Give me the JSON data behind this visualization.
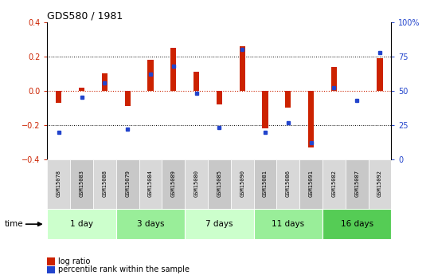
{
  "title": "GDS580 / 1981",
  "samples": [
    "GSM15078",
    "GSM15083",
    "GSM15088",
    "GSM15079",
    "GSM15084",
    "GSM15089",
    "GSM15080",
    "GSM15085",
    "GSM15090",
    "GSM15081",
    "GSM15086",
    "GSM15091",
    "GSM15082",
    "GSM15087",
    "GSM15092"
  ],
  "log_ratio": [
    -0.07,
    0.02,
    0.1,
    -0.09,
    0.18,
    0.25,
    0.11,
    -0.08,
    0.26,
    -0.22,
    -0.1,
    -0.33,
    0.14,
    0.0,
    0.19
  ],
  "percentile": [
    20,
    45,
    56,
    22,
    62,
    68,
    48,
    23,
    80,
    20,
    27,
    12,
    52,
    43,
    78
  ],
  "groups": [
    {
      "label": "1 day",
      "start": 0,
      "end": 3,
      "color": "#ccffcc"
    },
    {
      "label": "3 days",
      "start": 3,
      "end": 6,
      "color": "#99ee99"
    },
    {
      "label": "7 days",
      "start": 6,
      "end": 9,
      "color": "#ccffcc"
    },
    {
      "label": "11 days",
      "start": 9,
      "end": 12,
      "color": "#99ee99"
    },
    {
      "label": "16 days",
      "start": 12,
      "end": 15,
      "color": "#55cc55"
    }
  ],
  "bar_color": "#cc2200",
  "dot_color": "#2244cc",
  "ylim_left": [
    -0.4,
    0.4
  ],
  "yticks_left": [
    -0.4,
    -0.2,
    0.0,
    0.2,
    0.4
  ],
  "yticks_right": [
    0,
    25,
    50,
    75,
    100
  ],
  "legend_labels": [
    "log ratio",
    "percentile rank within the sample"
  ],
  "figsize": [
    5.4,
    3.45
  ],
  "dpi": 100
}
